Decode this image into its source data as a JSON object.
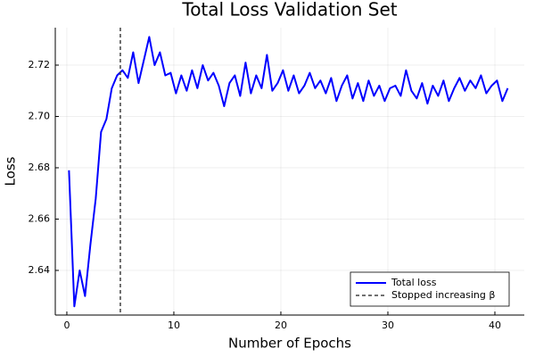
{
  "chart_data": {
    "type": "line",
    "title": "Total Loss Validation Set",
    "x_label": "Number of Epochs",
    "y_label": "Loss",
    "x": [
      0.2,
      0.7,
      1.2,
      1.7,
      2.2,
      2.7,
      3.2,
      3.7,
      4.2,
      4.7,
      5.2,
      5.7,
      6.2,
      6.7,
      7.2,
      7.7,
      8.2,
      8.7,
      9.2,
      9.7,
      10.2,
      10.7,
      11.2,
      11.7,
      12.2,
      12.7,
      13.2,
      13.7,
      14.2,
      14.7,
      15.2,
      15.7,
      16.2,
      16.7,
      17.2,
      17.7,
      18.2,
      18.7,
      19.2,
      19.7,
      20.2,
      20.7,
      21.2,
      21.7,
      22.2,
      22.7,
      23.2,
      23.7,
      24.2,
      24.7,
      25.2,
      25.7,
      26.2,
      26.7,
      27.2,
      27.7,
      28.2,
      28.7,
      29.2,
      29.7,
      30.2,
      30.7,
      31.2,
      31.7,
      32.2,
      32.7,
      33.2,
      33.7,
      34.2,
      34.7,
      35.2,
      35.7,
      36.2,
      36.7,
      37.2,
      37.7,
      38.2,
      38.7,
      39.2,
      39.7,
      40.2,
      40.7,
      41.2
    ],
    "series": [
      {
        "name": "Total loss",
        "color": "#0000ff",
        "values": [
          2.679,
          2.626,
          2.64,
          2.63,
          2.65,
          2.668,
          2.694,
          2.699,
          2.711,
          2.716,
          2.718,
          2.715,
          2.725,
          2.713,
          2.722,
          2.731,
          2.72,
          2.725,
          2.716,
          2.717,
          2.709,
          2.716,
          2.71,
          2.718,
          2.711,
          2.72,
          2.714,
          2.717,
          2.712,
          2.704,
          2.713,
          2.716,
          2.708,
          2.721,
          2.709,
          2.716,
          2.711,
          2.724,
          2.71,
          2.713,
          2.718,
          2.71,
          2.716,
          2.709,
          2.712,
          2.717,
          2.711,
          2.714,
          2.709,
          2.715,
          2.706,
          2.712,
          2.716,
          2.707,
          2.713,
          2.706,
          2.714,
          2.708,
          2.712,
          2.706,
          2.711,
          2.712,
          2.708,
          2.718,
          2.71,
          2.707,
          2.713,
          2.705,
          2.712,
          2.708,
          2.714,
          2.706,
          2.711,
          2.715,
          2.71,
          2.714,
          2.711,
          2.716,
          2.709,
          2.712,
          2.714,
          2.706,
          2.711
        ]
      }
    ],
    "vlines": [
      {
        "name": "Stopped increasing β",
        "x": 5,
        "color": "#404040",
        "dash": true
      }
    ],
    "xlim": [
      -1.08,
      42.75
    ],
    "ylim": [
      2.6226,
      2.7346
    ],
    "xticks": [
      0,
      10,
      20,
      30,
      40
    ],
    "yticks": [
      2.64,
      2.66,
      2.68,
      {
        "value": 2.7,
        "label": "2.70"
      },
      2.72
    ],
    "grid": true,
    "legend": "bottom-right"
  }
}
